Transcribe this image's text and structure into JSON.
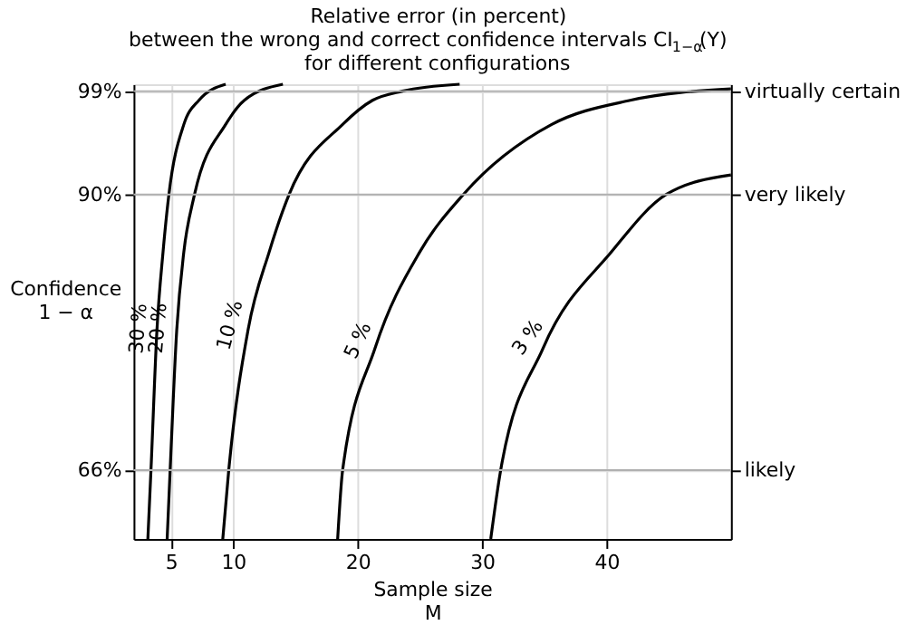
{
  "chart_data": {
    "type": "line",
    "title": "Relative error (in percent)\nbetween the wrong and correct confidence intervals CI$_{1−α}$(Y)\nfor different configurations",
    "xlabel": "Sample size\nM",
    "ylabel": "Confidence\n1 − α",
    "xlim": [
      2,
      50
    ],
    "xticks": [
      5,
      10,
      20,
      30,
      40
    ],
    "ylim": [
      60,
      99.6
    ],
    "yticks": [
      {
        "value": 66,
        "label": "66%"
      },
      {
        "value": 90,
        "label": "90%"
      },
      {
        "value": 99,
        "label": "99%"
      }
    ],
    "ref_lines": [
      {
        "axis": "y",
        "value": 66,
        "label": "likely"
      },
      {
        "axis": "y",
        "value": 90,
        "label": "very likely"
      },
      {
        "axis": "y",
        "value": 99,
        "label": "virtually certain"
      }
    ],
    "grid": true,
    "legend": false,
    "line_style": "solid",
    "marker": "none",
    "series": [
      {
        "name": "30 %",
        "color": "#000000",
        "x": [
          3.15,
          3.4,
          3.88,
          4.37,
          4.84,
          6.04,
          7.25,
          9.4
        ],
        "values": [
          60,
          66,
          78.2,
          85,
          90,
          96.1,
          98.2,
          99.6
        ]
      },
      {
        "name": "20 %",
        "color": "#000000",
        "x": [
          4.7,
          4.94,
          5.47,
          6.04,
          6.9,
          9.4,
          10.9,
          14.0
        ],
        "values": [
          60,
          66,
          78.2,
          85,
          90,
          96.1,
          98.2,
          99.6
        ]
      },
      {
        "name": "10 %",
        "color": "#000000",
        "x": [
          9.17,
          9.65,
          11.2,
          12.9,
          14.5,
          18.8,
          21.2,
          23.6,
          28.2
        ],
        "values": [
          60,
          66,
          78.2,
          85,
          90,
          96.1,
          98.2,
          99.0,
          99.6
        ]
      },
      {
        "name": "5 %",
        "color": "#000000",
        "x": [
          18.4,
          18.8,
          21.4,
          25.0,
          28.5,
          35.6,
          41.9,
          50
        ],
        "values": [
          60,
          66,
          76.6,
          85,
          90,
          96.1,
          98.2,
          99.2
        ]
      },
      {
        "name": "3 %",
        "color": "#000000",
        "x": [
          30.7,
          31.5,
          34.9,
          40.4,
          44.8,
          50
        ],
        "values": [
          60,
          66,
          76.6,
          85,
          90,
          91.7
        ]
      }
    ]
  }
}
